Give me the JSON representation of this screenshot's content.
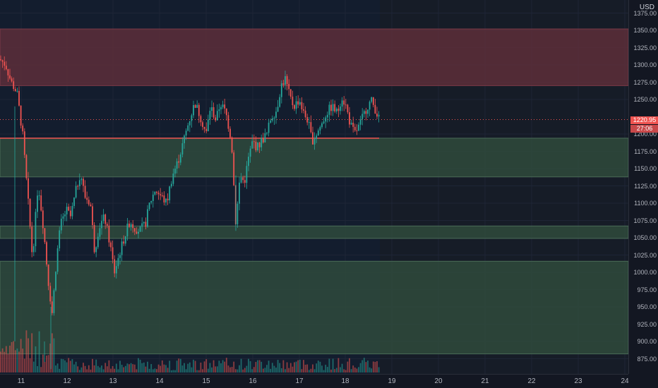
{
  "currency": "USD",
  "last_price": "1220.95",
  "countdown": "27:06",
  "price_ticks": [
    "1375.00",
    "1350.00",
    "1325.00",
    "1300.00",
    "1275.00",
    "1250.00",
    "1200.00",
    "1175.00",
    "1150.00",
    "1125.00",
    "1100.00",
    "1075.00",
    "1050.00",
    "1025.00",
    "1000.00",
    "975.00",
    "950.00",
    "925.00",
    "900.00",
    "875.00"
  ],
  "time_ticks": [
    "11",
    "12",
    "13",
    "14",
    "15",
    "16",
    "17",
    "18",
    "19",
    "20",
    "21",
    "22",
    "23",
    "24"
  ],
  "colors": {
    "background": "#131722",
    "up": "#26a69a",
    "down": "#ef5350",
    "resistance_zone": "#5d2e3a",
    "support_zone": "#2f4a3c",
    "horizontal_line": "#ef5350"
  },
  "chart_data": {
    "type": "candlestick",
    "y_range": [
      860,
      1385
    ],
    "x_days": [
      "11",
      "12",
      "13",
      "14",
      "15",
      "16",
      "17",
      "18",
      "19",
      "20",
      "21",
      "22",
      "23",
      "24"
    ],
    "zones": [
      {
        "kind": "resistance",
        "from": 1270,
        "to": 1352
      },
      {
        "kind": "support",
        "from": 1138,
        "to": 1194
      },
      {
        "kind": "support",
        "from": 1049,
        "to": 1067
      },
      {
        "kind": "support",
        "from": 882,
        "to": 1016
      }
    ],
    "horizontal_line": 1194,
    "last_price": 1220.95
  }
}
